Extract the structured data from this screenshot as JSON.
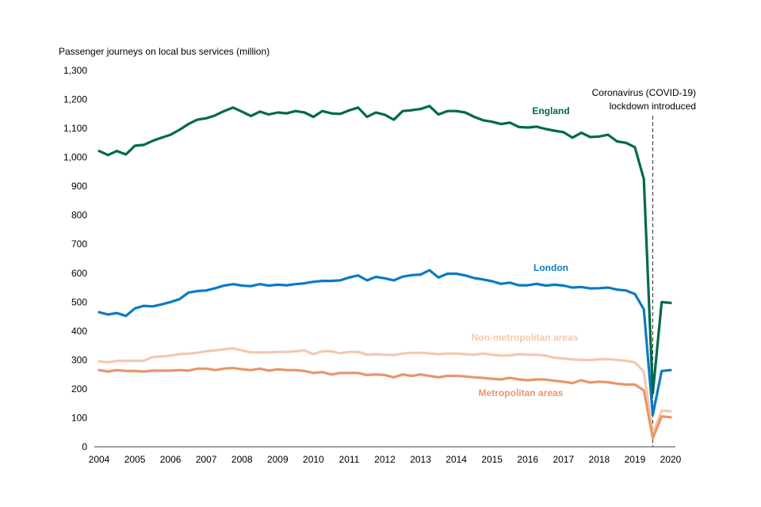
{
  "chart_data": {
    "type": "line",
    "title": "",
    "ylabel": "Passenger journeys  on local bus services (million)",
    "xlabel": "",
    "ylim": [
      0,
      1300
    ],
    "xlim": [
      2004,
      2020
    ],
    "grid": false,
    "yticks": [
      0,
      100,
      200,
      300,
      400,
      500,
      600,
      700,
      800,
      900,
      1000,
      1100,
      1200,
      1300
    ],
    "ytick_labels": [
      "0",
      "100",
      "200",
      "300",
      "400",
      "500",
      "600",
      "700",
      "800",
      "900",
      "1,000",
      "1,100",
      "1,200",
      "1,300"
    ],
    "xticks": [
      2004,
      2005,
      2006,
      2007,
      2008,
      2009,
      2010,
      2011,
      2012,
      2013,
      2014,
      2015,
      2016,
      2017,
      2018,
      2019,
      2020
    ],
    "xtick_labels": [
      "2004",
      "2005",
      "2006",
      "2007",
      "2008",
      "2009",
      "2010",
      "2011",
      "2012",
      "2013",
      "2014",
      "2015",
      "2016",
      "2017",
      "2018",
      "2019",
      "2020"
    ],
    "x_step": 0.25,
    "x_start": 2004,
    "annotation": {
      "lines": [
        "Coronavirus (COVID-19)",
        "lockdown introduced"
      ],
      "x": 2019.5,
      "style": "dashed-vertical"
    },
    "series": [
      {
        "name": "England",
        "color": "#00694b",
        "label_color": "#00694b",
        "values": [
          1022,
          1008,
          1022,
          1010,
          1040,
          1043,
          1057,
          1068,
          1078,
          1095,
          1115,
          1130,
          1135,
          1145,
          1160,
          1172,
          1158,
          1143,
          1158,
          1148,
          1155,
          1152,
          1160,
          1155,
          1140,
          1160,
          1152,
          1150,
          1162,
          1172,
          1140,
          1155,
          1147,
          1130,
          1160,
          1163,
          1167,
          1177,
          1148,
          1160,
          1160,
          1155,
          1140,
          1128,
          1123,
          1115,
          1120,
          1105,
          1103,
          1106,
          1098,
          1092,
          1087,
          1068,
          1085,
          1070,
          1072,
          1078,
          1055,
          1050,
          1035,
          925,
          185,
          500,
          497
        ]
      },
      {
        "name": "London",
        "color": "#0a7bc4",
        "label_color": "#0a7bc4",
        "values": [
          465,
          457,
          462,
          452,
          478,
          487,
          485,
          492,
          500,
          510,
          533,
          538,
          540,
          548,
          557,
          562,
          557,
          555,
          562,
          557,
          560,
          558,
          562,
          565,
          570,
          573,
          573,
          575,
          585,
          592,
          575,
          587,
          582,
          575,
          588,
          593,
          595,
          610,
          585,
          598,
          598,
          592,
          583,
          578,
          572,
          563,
          567,
          558,
          558,
          563,
          557,
          560,
          557,
          550,
          552,
          547,
          548,
          550,
          543,
          540,
          528,
          475,
          110,
          262,
          265
        ]
      },
      {
        "name": "Non-metropolitan areas",
        "color": "#f3c9ae",
        "label_color": "#f3c9ae",
        "values": [
          295,
          292,
          297,
          297,
          297,
          297,
          310,
          312,
          315,
          320,
          322,
          325,
          330,
          333,
          337,
          340,
          333,
          326,
          326,
          326,
          328,
          328,
          330,
          333,
          320,
          330,
          330,
          323,
          328,
          328,
          318,
          320,
          318,
          317,
          322,
          325,
          325,
          323,
          320,
          322,
          322,
          320,
          318,
          322,
          318,
          315,
          316,
          320,
          318,
          318,
          315,
          308,
          305,
          302,
          300,
          300,
          302,
          303,
          300,
          297,
          292,
          260,
          45,
          125,
          123
        ]
      },
      {
        "name": "Metropolitan areas",
        "color": "#e8966a",
        "label_color": "#e8966a",
        "values": [
          265,
          260,
          265,
          262,
          262,
          260,
          263,
          263,
          263,
          265,
          263,
          270,
          270,
          265,
          270,
          272,
          268,
          265,
          270,
          263,
          268,
          265,
          265,
          262,
          255,
          258,
          250,
          255,
          255,
          255,
          248,
          250,
          248,
          240,
          250,
          245,
          250,
          245,
          240,
          245,
          245,
          243,
          240,
          238,
          235,
          233,
          238,
          233,
          230,
          233,
          232,
          228,
          225,
          220,
          230,
          222,
          225,
          223,
          218,
          215,
          215,
          195,
          30,
          105,
          102
        ]
      }
    ]
  }
}
